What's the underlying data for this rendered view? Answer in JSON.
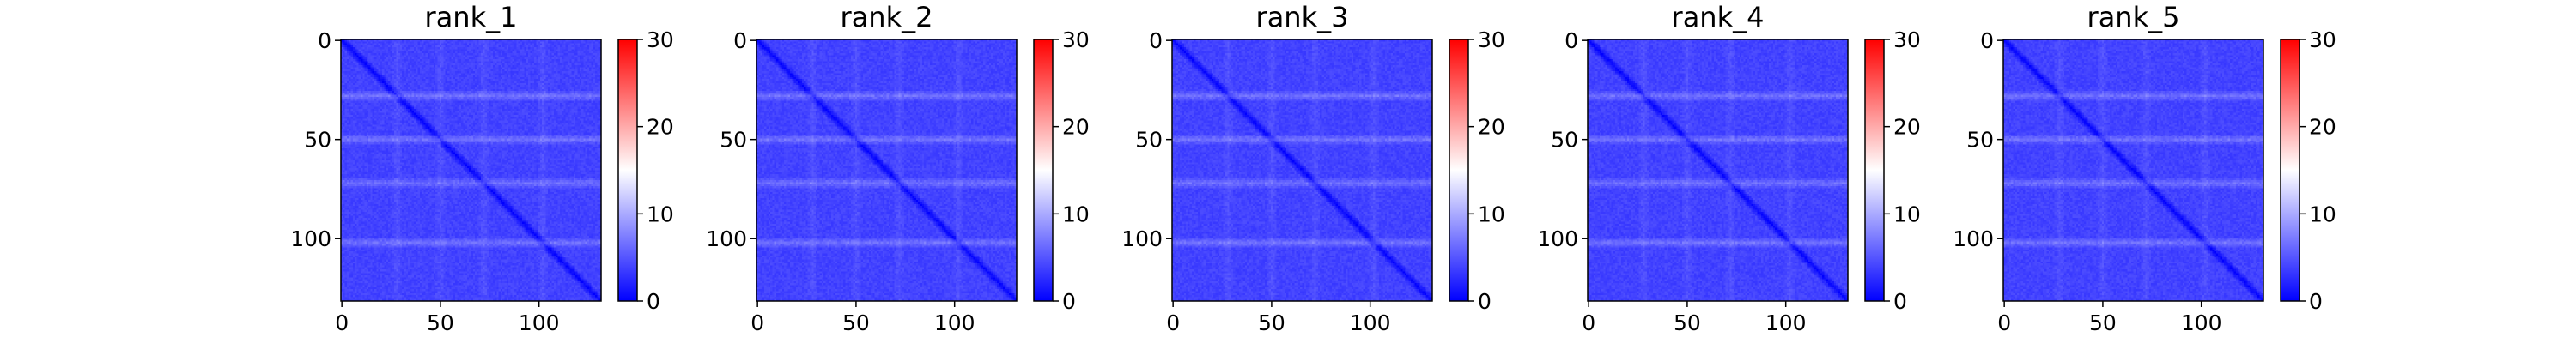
{
  "chart_data": [
    {
      "type": "heatmap",
      "title": "rank_1",
      "matrix_size": 132,
      "x_ticks": [
        0,
        50,
        100
      ],
      "y_ticks": [
        0,
        50,
        100
      ],
      "colorbar": {
        "min": 0,
        "max": 30,
        "ticks": [
          0,
          10,
          20,
          30
        ],
        "colormap": [
          "#0000ff",
          "#ffffff",
          "#ff0000"
        ]
      },
      "value_range": [
        0,
        9
      ],
      "light_bands_at_index": [
        28,
        50,
        72,
        102
      ],
      "diagonal": "darker blue (low values)"
    },
    {
      "type": "heatmap",
      "title": "rank_2",
      "matrix_size": 132,
      "x_ticks": [
        0,
        50,
        100
      ],
      "y_ticks": [
        0,
        50,
        100
      ],
      "colorbar": {
        "min": 0,
        "max": 30,
        "ticks": [
          0,
          10,
          20,
          30
        ],
        "colormap": [
          "#0000ff",
          "#ffffff",
          "#ff0000"
        ]
      },
      "value_range": [
        0,
        9
      ],
      "light_bands_at_index": [
        28,
        50,
        72,
        102
      ],
      "diagonal": "darker blue (low values)"
    },
    {
      "type": "heatmap",
      "title": "rank_3",
      "matrix_size": 132,
      "x_ticks": [
        0,
        50,
        100
      ],
      "y_ticks": [
        0,
        50,
        100
      ],
      "colorbar": {
        "min": 0,
        "max": 30,
        "ticks": [
          0,
          10,
          20,
          30
        ],
        "colormap": [
          "#0000ff",
          "#ffffff",
          "#ff0000"
        ]
      },
      "value_range": [
        0,
        9
      ],
      "light_bands_at_index": [
        28,
        50,
        72,
        102
      ],
      "diagonal": "darker blue (low values)"
    },
    {
      "type": "heatmap",
      "title": "rank_4",
      "matrix_size": 132,
      "x_ticks": [
        0,
        50,
        100
      ],
      "y_ticks": [
        0,
        50,
        100
      ],
      "colorbar": {
        "min": 0,
        "max": 30,
        "ticks": [
          0,
          10,
          20,
          30
        ],
        "colormap": [
          "#0000ff",
          "#ffffff",
          "#ff0000"
        ]
      },
      "value_range": [
        0,
        9
      ],
      "light_bands_at_index": [
        28,
        50,
        72,
        102
      ],
      "diagonal": "darker blue (low values)"
    },
    {
      "type": "heatmap",
      "title": "rank_5",
      "matrix_size": 132,
      "x_ticks": [
        0,
        50,
        100
      ],
      "y_ticks": [
        0,
        50,
        100
      ],
      "colorbar": {
        "min": 0,
        "max": 30,
        "ticks": [
          0,
          10,
          20,
          30
        ],
        "colormap": [
          "#0000ff",
          "#ffffff",
          "#ff0000"
        ]
      },
      "value_range": [
        0,
        9
      ],
      "light_bands_at_index": [
        28,
        50,
        72,
        102
      ],
      "diagonal": "darker blue (low values)"
    }
  ]
}
